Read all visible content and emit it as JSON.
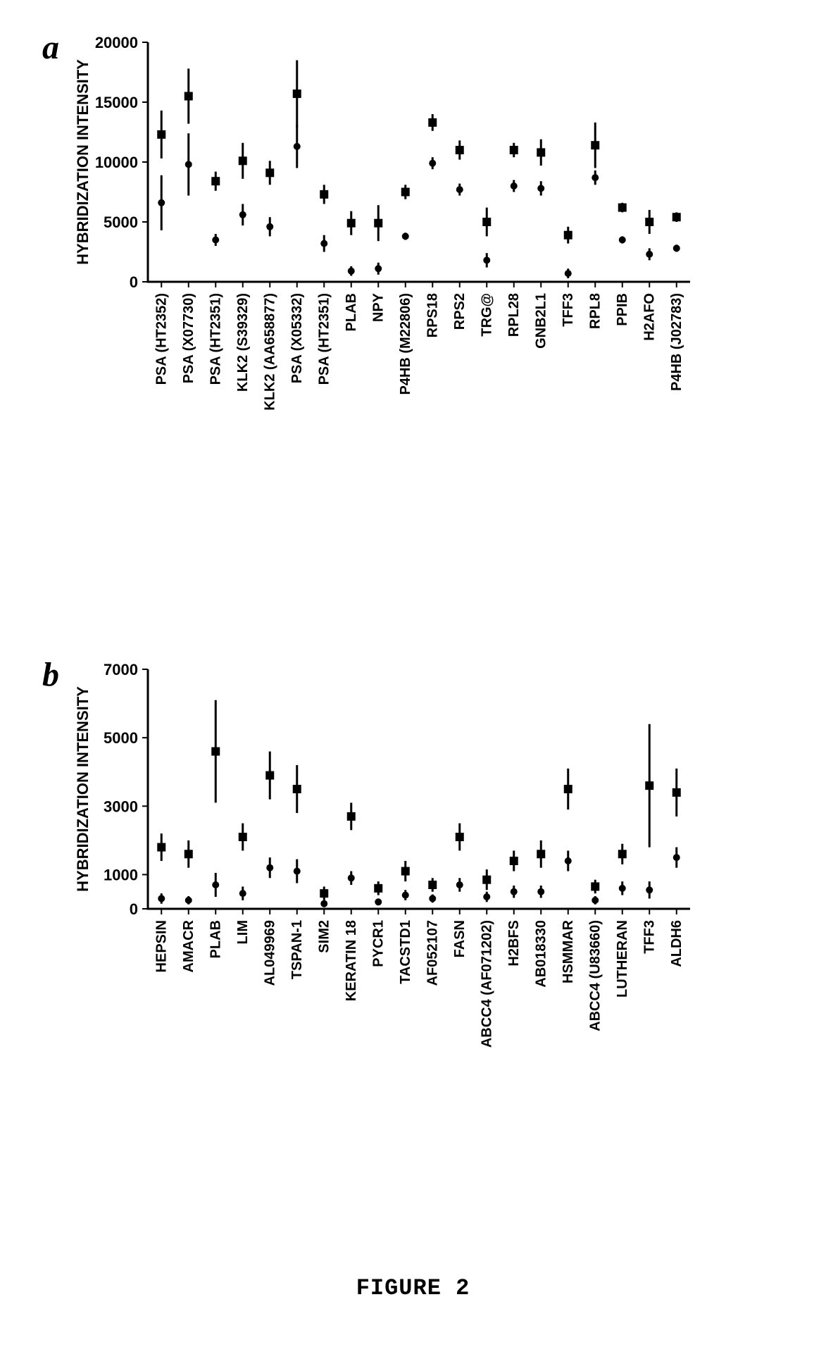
{
  "panel_a": {
    "label": "a",
    "ylabel": "HYBRIDIZATION INTENSITY",
    "ylim": [
      0,
      20000
    ],
    "ytick_step": 5000,
    "yticks": [
      0,
      5000,
      10000,
      15000,
      20000
    ],
    "categories": [
      "PSA (HT2352)",
      "PSA (X07730)",
      "PSA (HT2351)",
      "KLK2 (S39329)",
      "KLK2 (AA658877)",
      "PSA (X05332)",
      "PSA (HT2351)",
      "PLAB",
      "NPY",
      "P4HB (M22806)",
      "RPS18",
      "RPS2",
      "TRG@",
      "RPL28",
      "GNB2L1",
      "TFF3",
      "RPL8",
      "PPIB",
      "H2AFO",
      "P4HB (J02783)"
    ],
    "series_square": {
      "marker": "square",
      "color": "#000000",
      "size": 12,
      "values": [
        12300,
        15500,
        8400,
        10100,
        9100,
        15700,
        7300,
        4900,
        4900,
        7500,
        13300,
        11000,
        5000,
        11000,
        10800,
        3900,
        11400,
        6200,
        5000,
        5400
      ],
      "err": [
        2000,
        2300,
        800,
        1500,
        1000,
        2800,
        800,
        1000,
        1500,
        600,
        700,
        800,
        1200,
        600,
        1100,
        700,
        1900,
        400,
        1000,
        400
      ]
    },
    "series_circle": {
      "marker": "circle",
      "color": "#000000",
      "size": 10,
      "values": [
        6600,
        9800,
        3500,
        5600,
        4600,
        11300,
        3200,
        900,
        1100,
        3800,
        9900,
        7700,
        1800,
        8000,
        7800,
        700,
        8700,
        3500,
        2300,
        2800
      ],
      "err": [
        2300,
        2600,
        500,
        900,
        800,
        1800,
        700,
        400,
        500,
        300,
        500,
        500,
        600,
        500,
        600,
        400,
        600,
        300,
        500,
        300
      ]
    }
  },
  "panel_b": {
    "label": "b",
    "ylabel": "HYBRIDIZATION INTENSITY",
    "ylim": [
      0,
      7000
    ],
    "yticks": [
      0,
      1000,
      3000,
      5000,
      7000
    ],
    "categories": [
      "HEPSIN",
      "AMACR",
      "PLAB",
      "LIM",
      "AL049969",
      "TSPAN-1",
      "SIM2",
      "KERATIN 18",
      "PYCR1",
      "TACSTD1",
      "AF052107",
      "FASN",
      "ABCC4 (AF071202)",
      "H2BFS",
      "AB018330",
      "HSMMAR",
      "ABCC4 (U83660)",
      "LUTHERAN",
      "TFF3",
      "ALDH6"
    ],
    "series_square": {
      "marker": "square",
      "color": "#000000",
      "size": 12,
      "values": [
        1800,
        1600,
        4600,
        2100,
        3900,
        3500,
        450,
        2700,
        600,
        1100,
        700,
        2100,
        850,
        1400,
        1600,
        3500,
        650,
        1600,
        3600,
        3400
      ],
      "err": [
        400,
        400,
        1500,
        400,
        700,
        700,
        200,
        400,
        200,
        300,
        200,
        400,
        300,
        300,
        400,
        600,
        200,
        300,
        1800,
        700
      ]
    },
    "series_circle": {
      "marker": "circle",
      "color": "#000000",
      "size": 10,
      "values": [
        300,
        250,
        700,
        450,
        1200,
        1100,
        150,
        900,
        200,
        400,
        300,
        700,
        350,
        500,
        500,
        1400,
        250,
        600,
        550,
        1500
      ],
      "err": [
        150,
        120,
        350,
        200,
        300,
        350,
        100,
        200,
        100,
        150,
        120,
        200,
        150,
        180,
        180,
        300,
        120,
        200,
        250,
        300
      ]
    }
  },
  "figure_caption": "FIGURE 2",
  "colors": {
    "marker": "#000000",
    "axis": "#000000",
    "background": "#ffffff"
  }
}
